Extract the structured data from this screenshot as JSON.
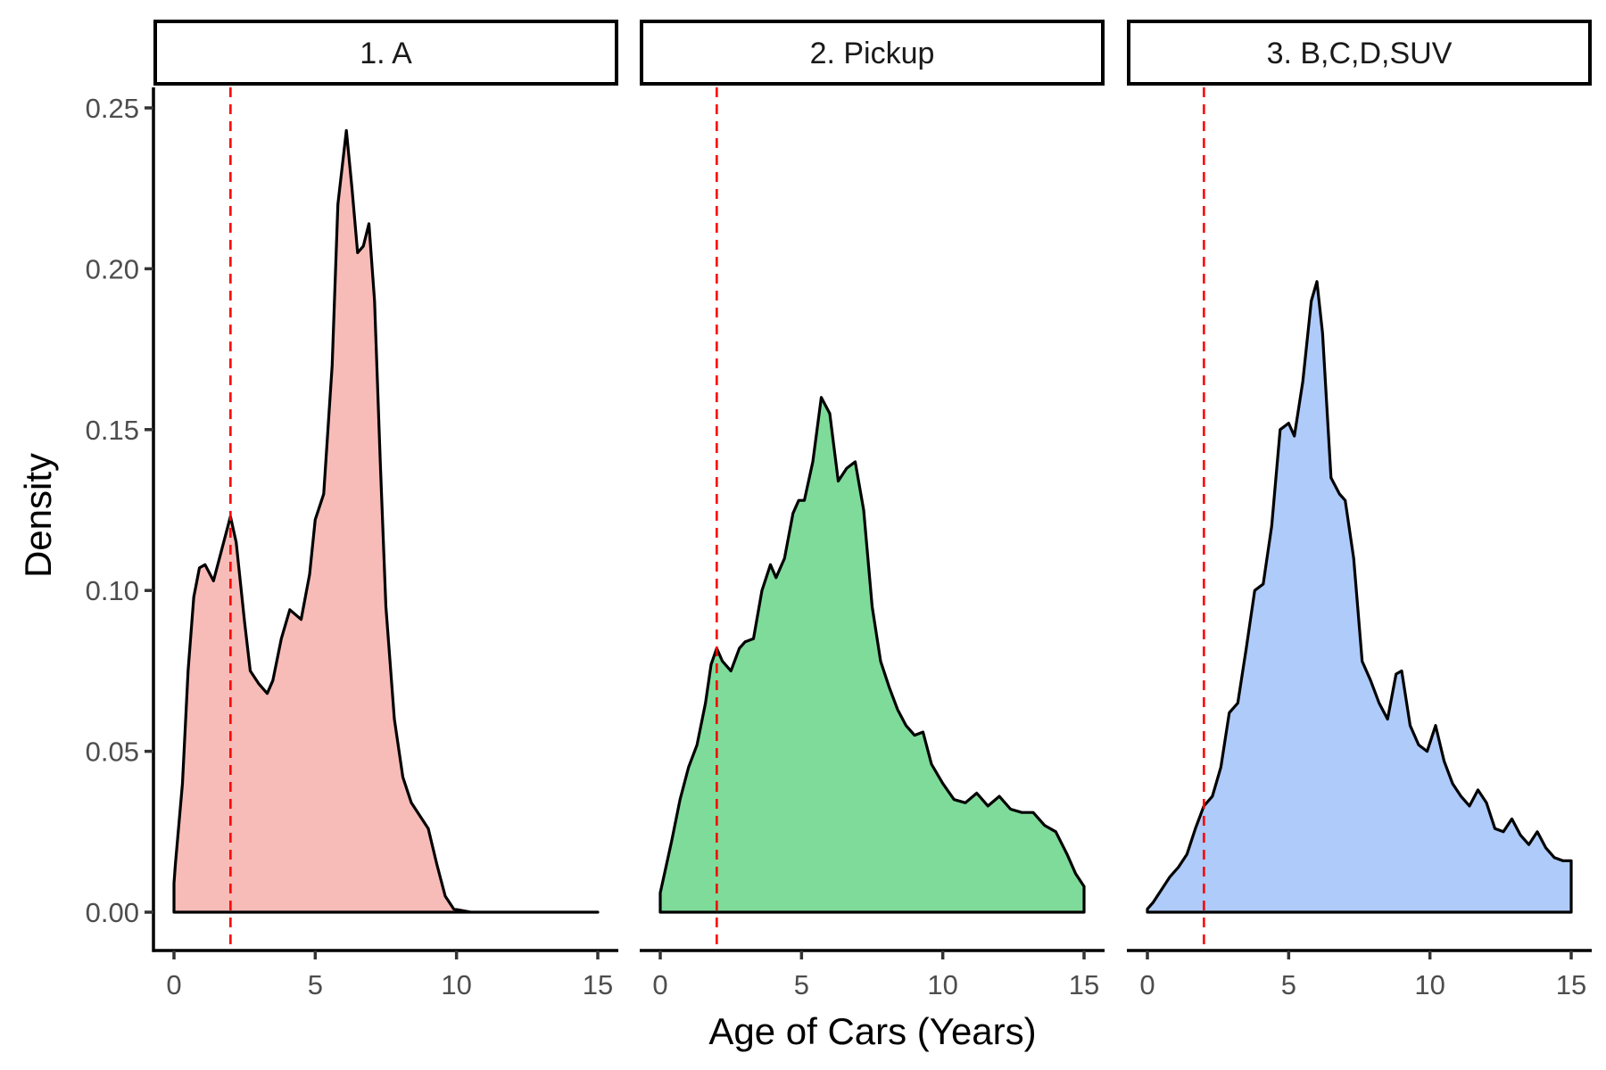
{
  "chart_data": {
    "type": "area",
    "subtype": "faceted density",
    "xlabel": "Age of Cars (Years)",
    "ylabel": "Density",
    "xlim": [
      0,
      15
    ],
    "ylim": [
      0,
      0.25
    ],
    "xticks": [
      0,
      5,
      10,
      15
    ],
    "xtick_labels": [
      "0",
      "5",
      "10",
      "15"
    ],
    "yticks": [
      0,
      0.05,
      0.1,
      0.15,
      0.2,
      0.25
    ],
    "ytick_labels": [
      "0.00",
      "0.05",
      "0.10",
      "0.15",
      "0.20",
      "0.25"
    ],
    "grid": false,
    "legend": "none",
    "reference_line": {
      "x": 2,
      "color": "#ff0000",
      "style": "dashed"
    },
    "outline_color": "#000000",
    "panels": [
      {
        "label": "1. A",
        "fill": "#f8bcb8",
        "x": [
          0,
          0.05,
          0.3,
          0.5,
          0.7,
          0.9,
          1.1,
          1.4,
          1.7,
          2.0,
          2.2,
          2.5,
          2.7,
          3.0,
          3.3,
          3.5,
          3.8,
          4.1,
          4.5,
          4.8,
          5.0,
          5.3,
          5.6,
          5.8,
          6.1,
          6.3,
          6.5,
          6.7,
          6.9,
          7.1,
          7.3,
          7.5,
          7.8,
          8.1,
          8.4,
          8.7,
          9.0,
          9.3,
          9.6,
          9.9,
          10.2,
          10.5,
          12,
          15
        ],
        "y": [
          0.009,
          0.015,
          0.04,
          0.075,
          0.098,
          0.107,
          0.108,
          0.103,
          0.113,
          0.123,
          0.115,
          0.09,
          0.075,
          0.071,
          0.068,
          0.072,
          0.085,
          0.094,
          0.091,
          0.105,
          0.122,
          0.13,
          0.17,
          0.22,
          0.243,
          0.225,
          0.205,
          0.207,
          0.214,
          0.19,
          0.14,
          0.095,
          0.06,
          0.042,
          0.034,
          0.03,
          0.026,
          0.015,
          0.005,
          0.001,
          0.0005,
          0,
          0,
          0
        ]
      },
      {
        "label": "2. Pickup",
        "fill": "#7fdb9a",
        "x": [
          0,
          0.1,
          0.4,
          0.7,
          1.0,
          1.3,
          1.6,
          1.8,
          2.0,
          2.2,
          2.5,
          2.8,
          3.0,
          3.3,
          3.6,
          3.9,
          4.1,
          4.4,
          4.7,
          4.9,
          5.1,
          5.4,
          5.7,
          6.0,
          6.3,
          6.6,
          6.9,
          7.2,
          7.5,
          7.8,
          8.1,
          8.4,
          8.7,
          9.0,
          9.3,
          9.6,
          10.0,
          10.4,
          10.8,
          11.2,
          11.6,
          12.0,
          12.4,
          12.8,
          13.2,
          13.6,
          14.0,
          14.4,
          14.7,
          15
        ],
        "y": [
          0.006,
          0.01,
          0.022,
          0.035,
          0.045,
          0.052,
          0.065,
          0.077,
          0.082,
          0.078,
          0.075,
          0.082,
          0.084,
          0.085,
          0.1,
          0.108,
          0.104,
          0.11,
          0.124,
          0.128,
          0.128,
          0.14,
          0.16,
          0.155,
          0.134,
          0.138,
          0.14,
          0.125,
          0.095,
          0.078,
          0.07,
          0.063,
          0.058,
          0.055,
          0.056,
          0.046,
          0.04,
          0.035,
          0.034,
          0.037,
          0.033,
          0.036,
          0.032,
          0.031,
          0.031,
          0.027,
          0.025,
          0.018,
          0.012,
          0.008
        ]
      },
      {
        "label": "3. B,C,D,SUV",
        "fill": "#aecbfa",
        "x": [
          0,
          0.2,
          0.5,
          0.8,
          1.1,
          1.4,
          1.7,
          2.0,
          2.3,
          2.6,
          2.9,
          3.2,
          3.5,
          3.8,
          4.1,
          4.4,
          4.7,
          5.0,
          5.2,
          5.5,
          5.8,
          6.0,
          6.2,
          6.5,
          6.8,
          7.0,
          7.3,
          7.6,
          7.9,
          8.2,
          8.5,
          8.8,
          9.0,
          9.3,
          9.6,
          9.9,
          10.2,
          10.5,
          10.8,
          11.1,
          11.4,
          11.7,
          12.0,
          12.3,
          12.6,
          12.9,
          13.2,
          13.5,
          13.8,
          14.1,
          14.4,
          14.7,
          15
        ],
        "y": [
          0.001,
          0.003,
          0.007,
          0.011,
          0.014,
          0.018,
          0.026,
          0.033,
          0.036,
          0.045,
          0.062,
          0.065,
          0.082,
          0.1,
          0.102,
          0.12,
          0.15,
          0.152,
          0.148,
          0.165,
          0.19,
          0.196,
          0.18,
          0.135,
          0.13,
          0.128,
          0.11,
          0.078,
          0.072,
          0.065,
          0.06,
          0.074,
          0.075,
          0.058,
          0.052,
          0.05,
          0.058,
          0.047,
          0.04,
          0.036,
          0.033,
          0.038,
          0.034,
          0.026,
          0.025,
          0.029,
          0.024,
          0.021,
          0.025,
          0.02,
          0.017,
          0.016,
          0.016
        ]
      }
    ]
  }
}
